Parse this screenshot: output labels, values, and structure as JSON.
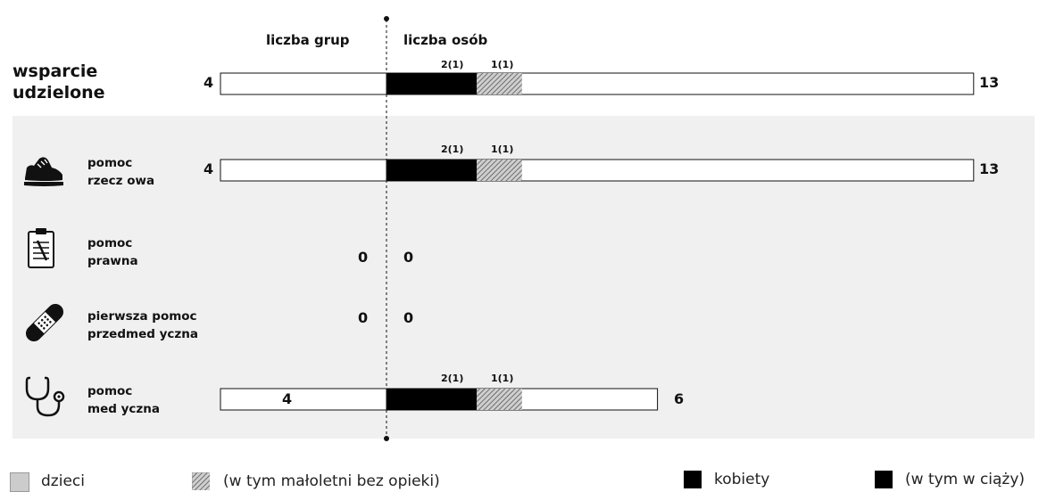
{
  "header": {
    "groups_label": "liczba grup",
    "persons_label": "liczba osób"
  },
  "total": {
    "label_line1": "wsparcie",
    "label_line2": "udzielone",
    "groups": "4",
    "persons": "13",
    "seg1_label": "2(1)",
    "seg2_label": "1(1)"
  },
  "rows": [
    {
      "label_line1": "pomoc",
      "label_line2": "rzecz owa",
      "icon": "shoe-icon",
      "groups": "4",
      "persons": "13",
      "seg1_label": "2(1)",
      "seg2_label": "1(1)"
    },
    {
      "label_line1": "pomoc",
      "label_line2": "prawna",
      "icon": "clipboard-icon",
      "groups": "0",
      "persons": "0"
    },
    {
      "label_line1": "pierwsza pomoc",
      "label_line2": "przedmed yczna",
      "icon": "bandage-icon",
      "groups": "0",
      "persons": "0"
    },
    {
      "label_line1": "pomoc",
      "label_line2": "med yczna",
      "icon": "stethoscope-icon",
      "groups": "4",
      "persons": "6",
      "seg1_label": "2(1)",
      "seg2_label": "1(1)"
    }
  ],
  "legend": {
    "children": "dzieci",
    "unaccompanied_minors": "(w tym małoletni bez opieki)",
    "women": "kobiety",
    "pregnant": "(w tym w ciąży)"
  },
  "chart_data": {
    "type": "bar",
    "categories": [
      "wsparcie udzielone",
      "pomoc rzeczowa",
      "pomoc prawna",
      "pierwsza pomoc przedmedyczna",
      "pomoc medyczna"
    ],
    "groups": [
      4,
      4,
      0,
      0,
      4
    ],
    "persons": [
      13,
      13,
      0,
      0,
      6
    ],
    "women": [
      2,
      2,
      0,
      0,
      2
    ],
    "women_pregnant": [
      1,
      1,
      0,
      0,
      1
    ],
    "children": [
      1,
      1,
      0,
      0,
      1
    ],
    "children_unaccompanied": [
      1,
      1,
      0,
      0,
      1
    ],
    "colors": {
      "women": "#000000",
      "children": "#cccccc",
      "bar_fill": "#ffffff",
      "panel_background": "#f0f0f0"
    },
    "legend_position": "bottom"
  }
}
